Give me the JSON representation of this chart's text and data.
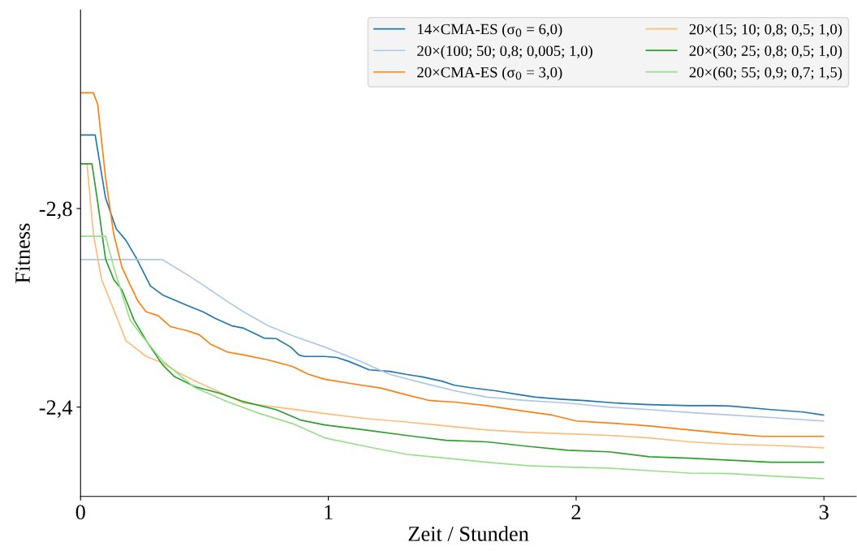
{
  "chart_data": {
    "type": "line",
    "xlabel": "Zeit / Stunden",
    "ylabel": "Fitness",
    "xlim": [
      0,
      3.13
    ],
    "xticks": [
      0,
      1,
      2,
      3
    ],
    "ylim": [
      -2.22,
      -3.2
    ],
    "yticks": [
      {
        "value": -2.8,
        "label": "-2,8"
      },
      {
        "value": -2.4,
        "label": "-2,4"
      }
    ],
    "grid": false,
    "legend": "top right",
    "marker": "none",
    "line_style": "solid",
    "series": [
      {
        "name": "14×CMA-ES (σ$_{0}$ = 6,0)",
        "color": "#1f77b4",
        "x": [
          0,
          0.059,
          0.101,
          0.144,
          0.183,
          0.223,
          0.282,
          0.331,
          0.429,
          0.494,
          0.543,
          0.609,
          0.658,
          0.74,
          0.789,
          0.848,
          0.881,
          0.903,
          0.985,
          1.034,
          1.083,
          1.165,
          1.247,
          1.313,
          1.378,
          1.46,
          1.509,
          1.574,
          1.673,
          1.771,
          1.836,
          1.934,
          2.033,
          2.164,
          2.295,
          2.458,
          2.556,
          2.622,
          2.786,
          2.917,
          2.998
        ],
        "values": [
          -2.948,
          -2.948,
          -2.821,
          -2.759,
          -2.736,
          -2.702,
          -2.644,
          -2.626,
          -2.605,
          -2.592,
          -2.579,
          -2.564,
          -2.559,
          -2.539,
          -2.538,
          -2.521,
          -2.505,
          -2.502,
          -2.502,
          -2.5,
          -2.492,
          -2.475,
          -2.472,
          -2.466,
          -2.461,
          -2.452,
          -2.444,
          -2.439,
          -2.433,
          -2.425,
          -2.42,
          -2.416,
          -2.413,
          -2.408,
          -2.405,
          -2.403,
          -2.403,
          -2.402,
          -2.395,
          -2.39,
          -2.384
        ]
      },
      {
        "name": "20×(100; 50; 0,8; 0,005; 1,0)",
        "color": "#aec7e8",
        "x": [
          0,
          0.331,
          0.445,
          0.494,
          0.592,
          0.658,
          0.756,
          0.854,
          0.985,
          1.116,
          1.247,
          1.378,
          1.509,
          1.64,
          1.804,
          1.967,
          2.131,
          2.295,
          2.458,
          2.622,
          2.786,
          2.998
        ],
        "values": [
          -2.697,
          -2.697,
          -2.662,
          -2.646,
          -2.613,
          -2.592,
          -2.564,
          -2.544,
          -2.521,
          -2.495,
          -2.466,
          -2.449,
          -2.433,
          -2.42,
          -2.413,
          -2.408,
          -2.4,
          -2.395,
          -2.389,
          -2.384,
          -2.379,
          -2.372
        ]
      },
      {
        "name": "20×CMA-ES (σ$_{0}$ = 3,0)",
        "color": "#ff7f0e",
        "x": [
          0,
          0.052,
          0.069,
          0.101,
          0.134,
          0.167,
          0.2,
          0.232,
          0.265,
          0.314,
          0.363,
          0.429,
          0.478,
          0.527,
          0.592,
          0.658,
          0.756,
          0.854,
          0.92,
          0.985,
          1.083,
          1.214,
          1.313,
          1.411,
          1.509,
          1.64,
          1.771,
          1.902,
          2.0,
          2.164,
          2.295,
          2.458,
          2.622,
          2.753,
          2.998
        ],
        "values": [
          -3.033,
          -3.033,
          -3.01,
          -2.862,
          -2.748,
          -2.682,
          -2.646,
          -2.613,
          -2.592,
          -2.584,
          -2.562,
          -2.554,
          -2.546,
          -2.526,
          -2.511,
          -2.505,
          -2.495,
          -2.482,
          -2.466,
          -2.456,
          -2.448,
          -2.438,
          -2.425,
          -2.413,
          -2.41,
          -2.403,
          -2.393,
          -2.384,
          -2.372,
          -2.367,
          -2.362,
          -2.354,
          -2.346,
          -2.341,
          -2.341
        ]
      },
      {
        "name": "20×(15; 10; 0,8; 0,5; 1,0)",
        "color": "#ffbb78",
        "x": [
          0.026,
          0.052,
          0.085,
          0.118,
          0.151,
          0.183,
          0.216,
          0.265,
          0.331,
          0.396,
          0.478,
          0.658,
          0.822,
          0.985,
          1.149,
          1.313,
          1.476,
          1.64,
          1.804,
          1.967,
          2.131,
          2.295,
          2.458,
          2.622,
          2.786,
          2.998
        ],
        "values": [
          -2.89,
          -2.748,
          -2.657,
          -2.616,
          -2.575,
          -2.534,
          -2.521,
          -2.502,
          -2.489,
          -2.469,
          -2.449,
          -2.408,
          -2.398,
          -2.387,
          -2.377,
          -2.37,
          -2.362,
          -2.354,
          -2.349,
          -2.346,
          -2.343,
          -2.338,
          -2.33,
          -2.325,
          -2.323,
          -2.318
        ]
      },
      {
        "name": "20×(30; 25; 0,8; 0,5; 1,0)",
        "color": "#2ca02c",
        "x": [
          0,
          0.046,
          0.069,
          0.101,
          0.134,
          0.167,
          0.216,
          0.265,
          0.331,
          0.38,
          0.462,
          0.56,
          0.658,
          0.789,
          0.887,
          0.985,
          1.149,
          1.313,
          1.476,
          1.64,
          1.804,
          1.967,
          2.131,
          2.295,
          2.458,
          2.622,
          2.786,
          2.998
        ],
        "values": [
          -2.89,
          -2.89,
          -2.813,
          -2.698,
          -2.657,
          -2.636,
          -2.575,
          -2.534,
          -2.485,
          -2.461,
          -2.441,
          -2.428,
          -2.411,
          -2.395,
          -2.374,
          -2.364,
          -2.354,
          -2.343,
          -2.333,
          -2.33,
          -2.321,
          -2.313,
          -2.31,
          -2.3,
          -2.297,
          -2.293,
          -2.289,
          -2.289
        ]
      },
      {
        "name": "20×(60; 55; 0,9; 0,7; 1,5)",
        "color": "#98df8a",
        "x": [
          0,
          0.101,
          0.134,
          0.2,
          0.249,
          0.331,
          0.462,
          0.592,
          0.723,
          0.854,
          0.985,
          1.149,
          1.313,
          1.476,
          1.64,
          1.804,
          1.967,
          2.131,
          2.295,
          2.458,
          2.622,
          2.786,
          2.998
        ],
        "values": [
          -2.744,
          -2.744,
          -2.682,
          -2.575,
          -2.543,
          -2.493,
          -2.439,
          -2.411,
          -2.387,
          -2.367,
          -2.338,
          -2.321,
          -2.305,
          -2.297,
          -2.289,
          -2.282,
          -2.279,
          -2.277,
          -2.272,
          -2.267,
          -2.266,
          -2.261,
          -2.256
        ]
      }
    ]
  }
}
